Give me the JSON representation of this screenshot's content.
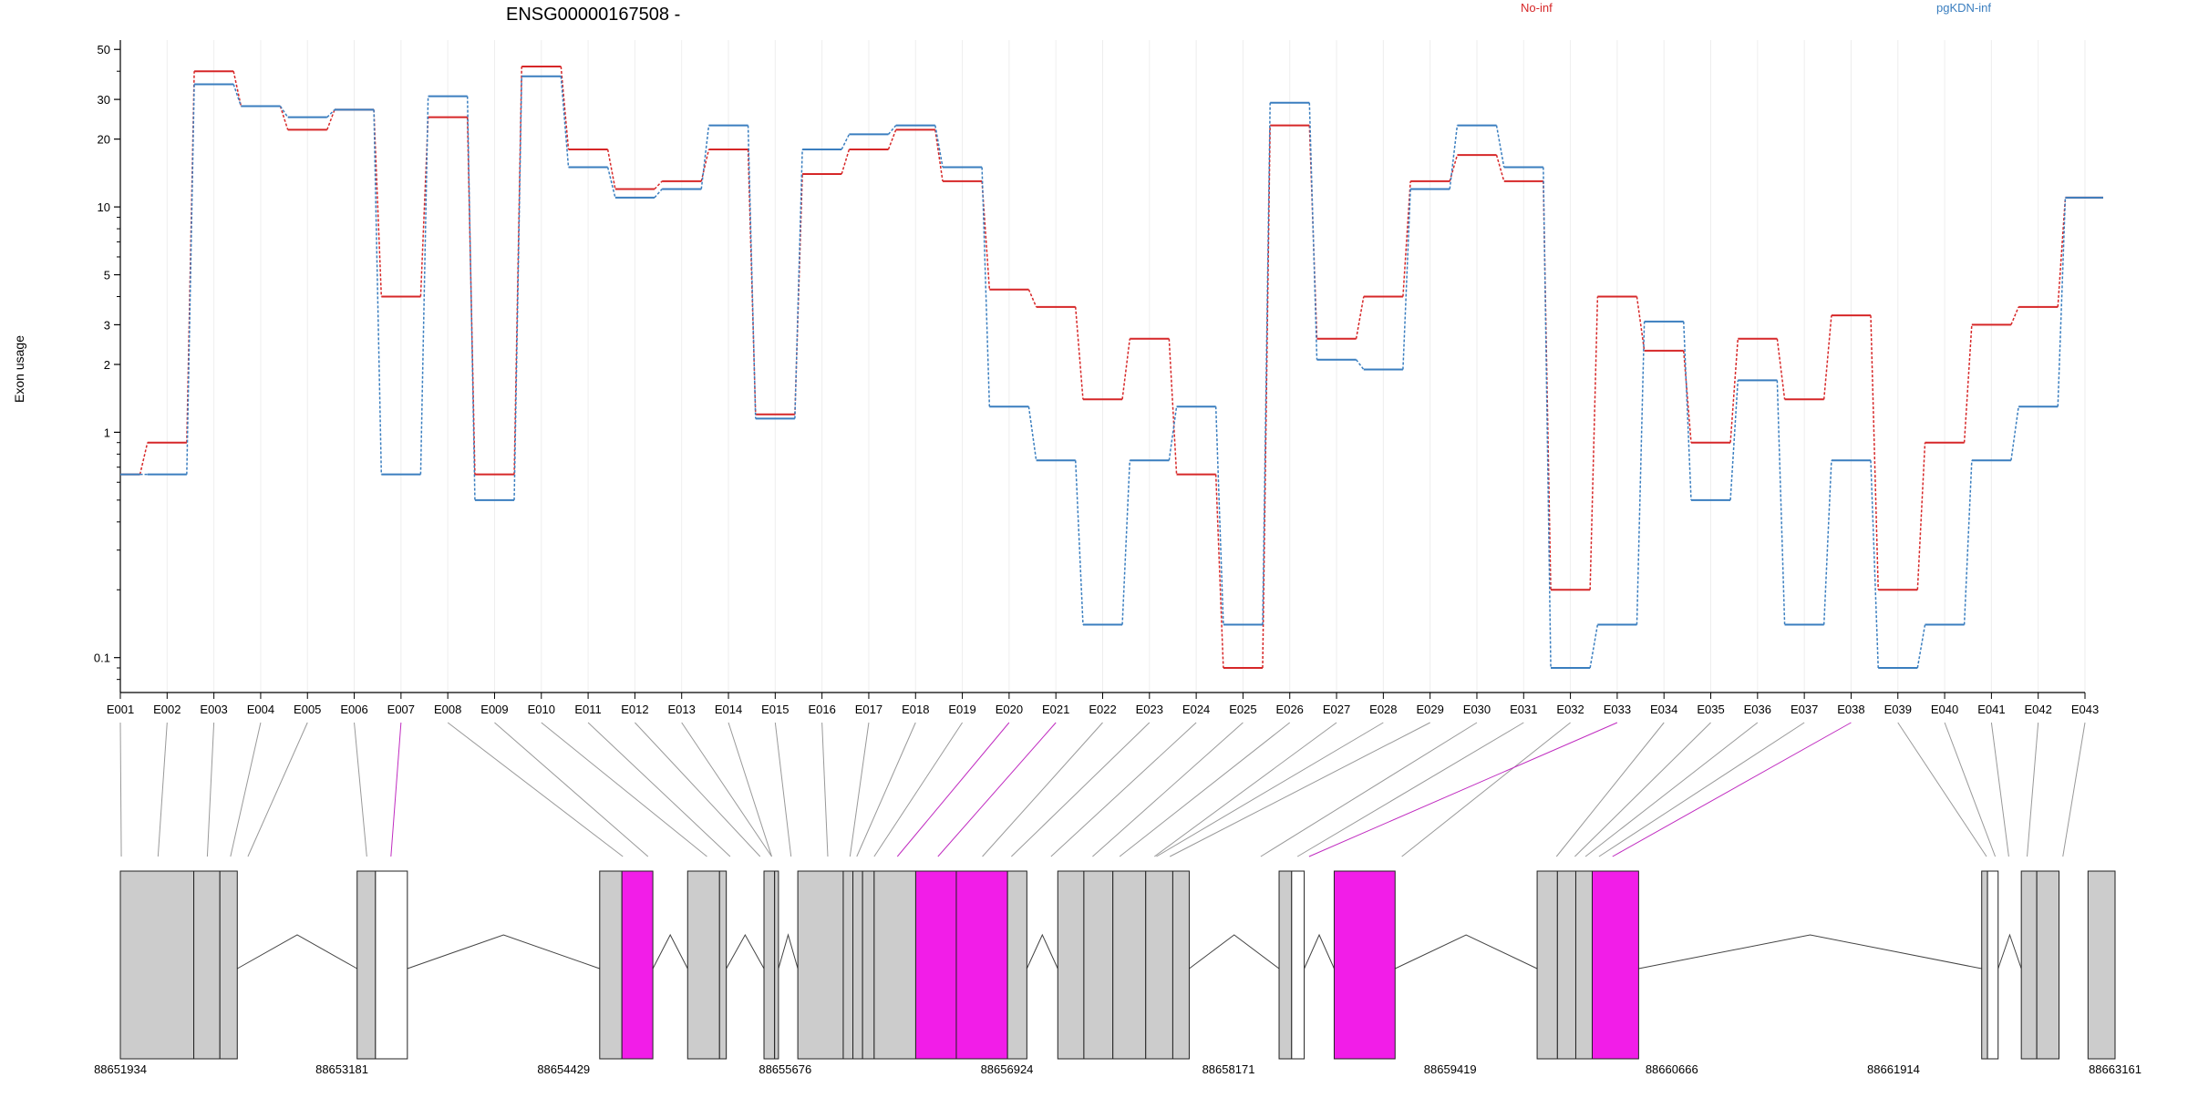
{
  "chart_data": {
    "type": "line",
    "title": "ENSG00000167508 -",
    "ylabel": "Exon usage",
    "yscale": "log",
    "ylim": [
      0.07,
      55
    ],
    "yticks": [
      0.1,
      1,
      2,
      3,
      5,
      10,
      20,
      30,
      50
    ],
    "ytick_labels": [
      "0.1",
      "1",
      "2",
      "3",
      "5",
      "10",
      "20",
      "30",
      "50"
    ],
    "grid": true,
    "legend_position": "top",
    "categories": [
      "E001",
      "E002",
      "E003",
      "E004",
      "E005",
      "E006",
      "E007",
      "E008",
      "E009",
      "E010",
      "E011",
      "E012",
      "E013",
      "E014",
      "E015",
      "E016",
      "E017",
      "E018",
      "E019",
      "E020",
      "E021",
      "E022",
      "E023",
      "E024",
      "E025",
      "E026",
      "E027",
      "E028",
      "E029",
      "E030",
      "E031",
      "E032",
      "E033",
      "E034",
      "E035",
      "E036",
      "E037",
      "E038",
      "E039",
      "E040",
      "E041",
      "E042",
      "E043"
    ],
    "series": [
      {
        "name": "No-inf",
        "color": "#d62728",
        "values": [
          0.65,
          0.9,
          40,
          28,
          22,
          27,
          4,
          25,
          0.65,
          42,
          18,
          12,
          13,
          18,
          1.2,
          14,
          18,
          22,
          13,
          4.3,
          3.6,
          1.4,
          2.6,
          0.65,
          0.09,
          23,
          2.6,
          4,
          13,
          17,
          13,
          0.2,
          4,
          2.3,
          0.9,
          2.6,
          1.4,
          3.3,
          0.2,
          0.9,
          3,
          3.6,
          11
        ]
      },
      {
        "name": "pgKDN-inf",
        "color": "#3a7ebf",
        "values": [
          0.65,
          0.65,
          35,
          28,
          25,
          27,
          0.65,
          31,
          0.5,
          38,
          15,
          11,
          12,
          23,
          1.15,
          18,
          21,
          23,
          15,
          1.3,
          0.75,
          0.14,
          0.75,
          1.3,
          0.14,
          29,
          2.1,
          1.9,
          12,
          23,
          15,
          0.09,
          0.14,
          3.1,
          0.5,
          1.7,
          0.14,
          0.75,
          0.09,
          0.14,
          0.75,
          1.3,
          11
        ]
      }
    ],
    "gene_model": {
      "coordinate_labels": [
        "88651934",
        "88653181",
        "88654429",
        "88655676",
        "88656924",
        "88658171",
        "88659419",
        "88660666",
        "88661914",
        "88663161"
      ],
      "coord_range": [
        88651934,
        88663161
      ],
      "highlighted_exons": [
        "E007",
        "E020",
        "E021",
        "E033",
        "E038"
      ],
      "exon_fill": "#cccccc",
      "highlight_fill": "#f21de8"
    }
  }
}
